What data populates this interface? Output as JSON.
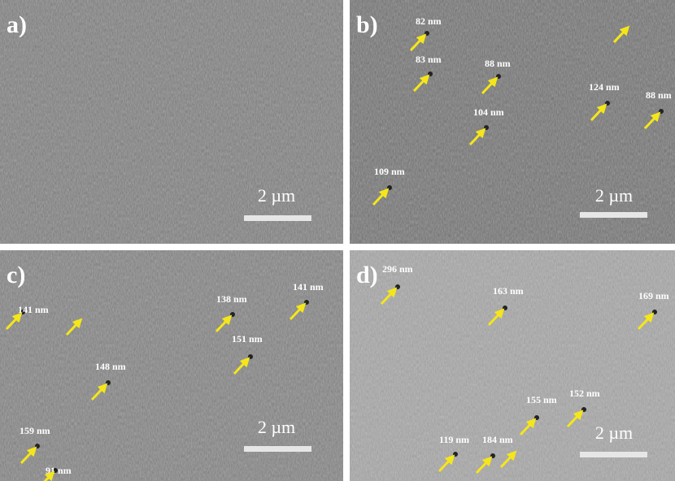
{
  "panels": [
    {
      "label": "a)",
      "scale": "2 µm",
      "notes": []
    },
    {
      "label": "b)",
      "scale": "2 µm",
      "notes": [
        "82 nm",
        "83 nm",
        "88 nm",
        "104 nm",
        "124 nm",
        "88 nm",
        "109 nm"
      ]
    },
    {
      "label": "c)",
      "scale": "2 µm",
      "notes": [
        "141 nm",
        "138 nm",
        "141 nm",
        "151 nm",
        "148 nm",
        "159 nm",
        "91 nm"
      ]
    },
    {
      "label": "d)",
      "scale": "2 µm",
      "notes": [
        "296 nm",
        "163 nm",
        "169 nm",
        "155 nm",
        "152 nm",
        "119 nm",
        "184 nm"
      ]
    }
  ]
}
